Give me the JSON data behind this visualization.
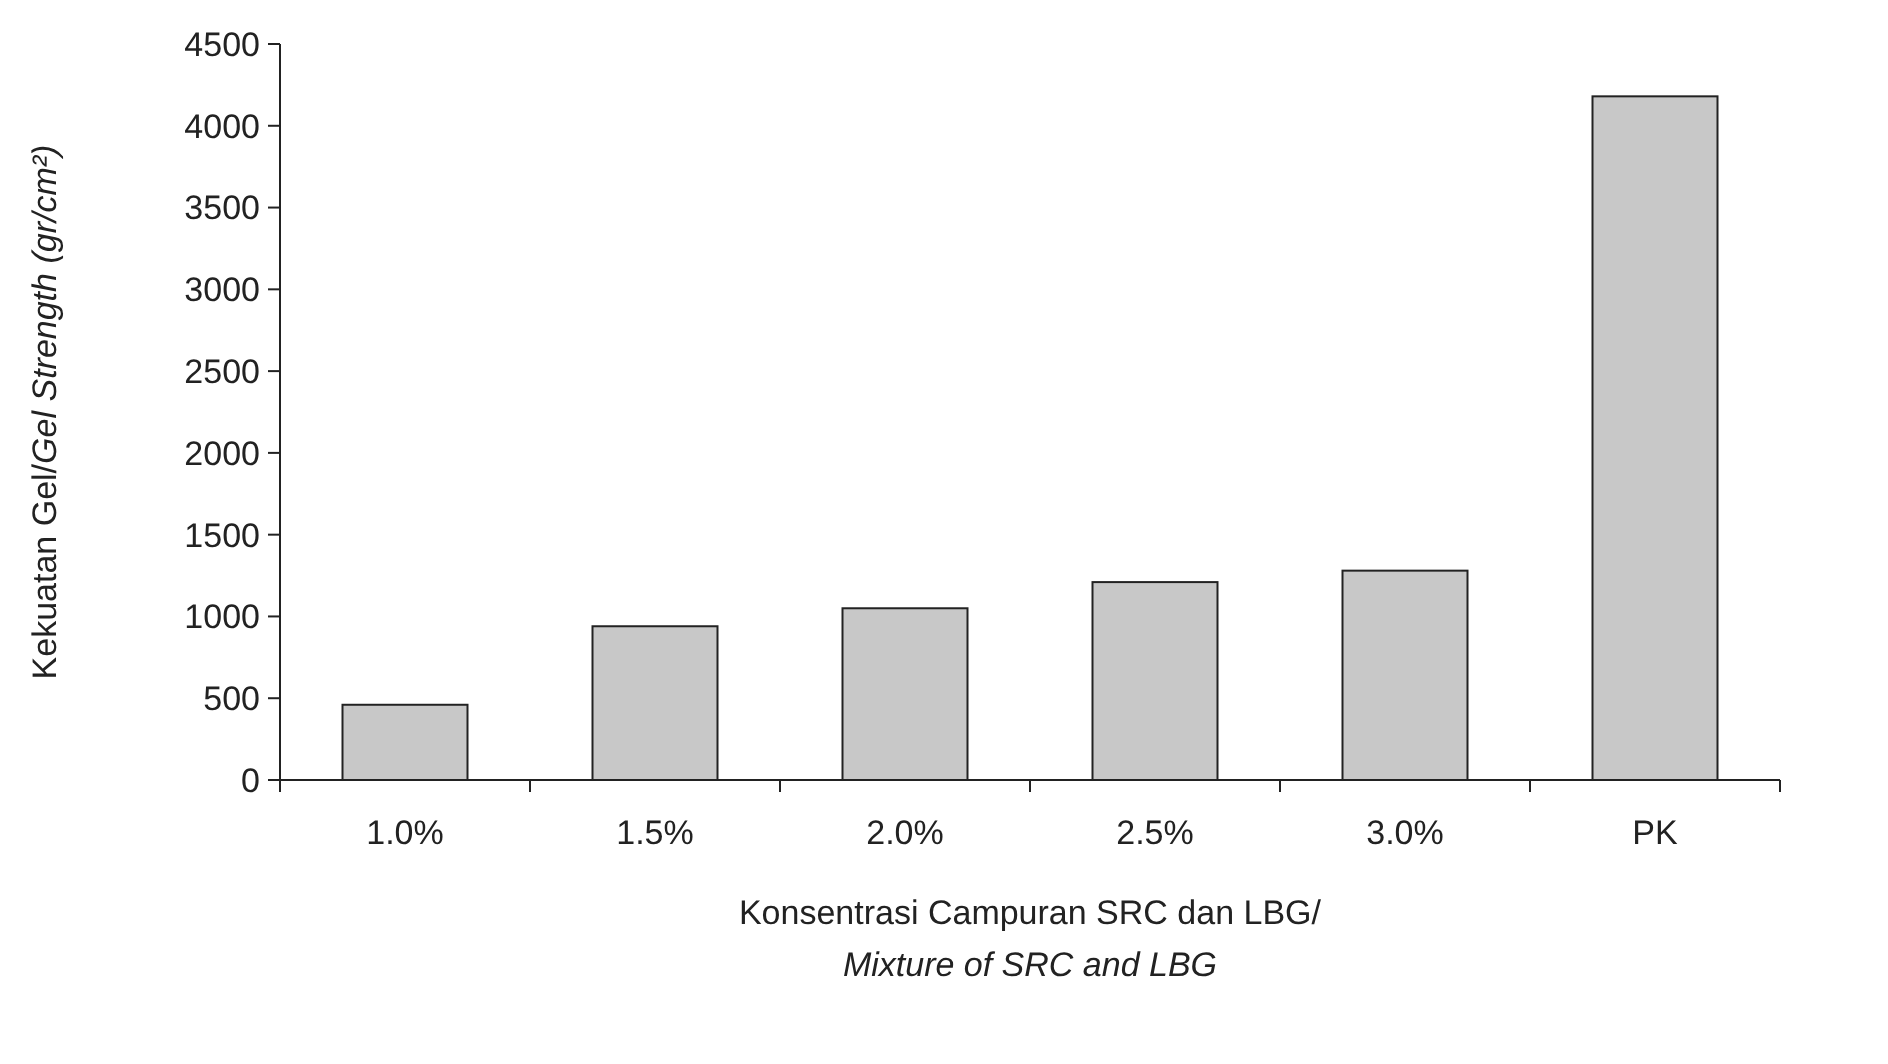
{
  "chart_data": {
    "type": "bar",
    "categories": [
      "1.0%",
      "1.5%",
      "2.0%",
      "2.5%",
      "3.0%",
      "PK"
    ],
    "values": [
      460,
      940,
      1050,
      1210,
      1280,
      4180
    ],
    "color": "#c8c8c8",
    "ylim": [
      0,
      4500
    ],
    "yticks": [
      0,
      500,
      1000,
      1500,
      2000,
      2500,
      3000,
      3500,
      4000,
      4500
    ],
    "ylabel": "Kekuatan Gel/Gel Strength (gr/cm²)",
    "xlabel": "Konsentrasi Campuran SRC dan LBG/\nMixture of SRC and LBG",
    "grid": false
  }
}
